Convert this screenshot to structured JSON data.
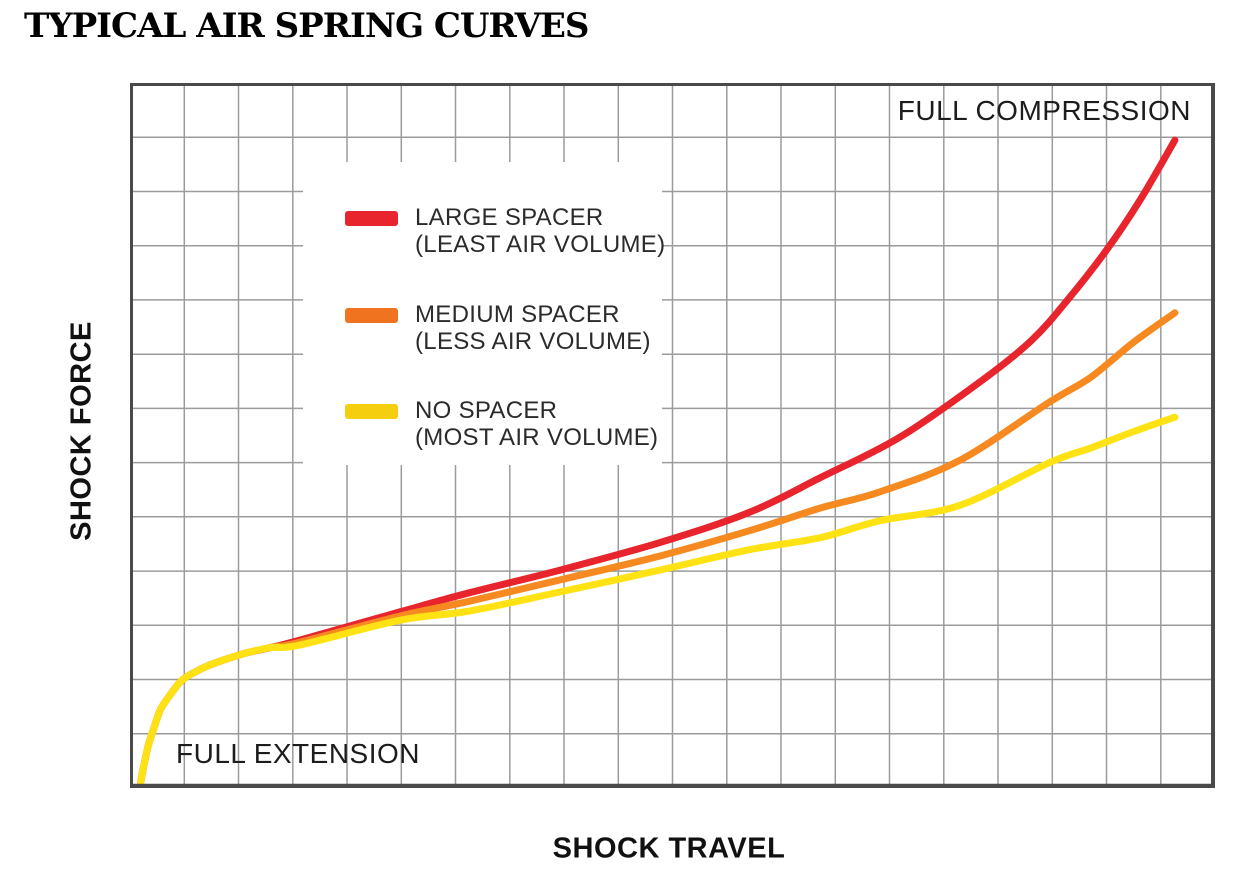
{
  "title": "TYPICAL AIR SPRING CURVES",
  "axes": {
    "y_label": "SHOCK FORCE",
    "x_label": "SHOCK TRAVEL"
  },
  "annotations": {
    "top_right": "FULL COMPRESSION",
    "bottom_left": "FULL EXTENSION"
  },
  "legend": {
    "items": [
      {
        "label": "LARGE SPACER",
        "sublabel": "(LEAST AIR VOLUME)",
        "color": "#E8242D"
      },
      {
        "label": "MEDIUM SPACER",
        "sublabel": "(LESS AIR VOLUME)",
        "color": "#F07320"
      },
      {
        "label": "NO SPACER",
        "sublabel": "(MOST AIR VOLUME)",
        "color": "#F6CE10"
      }
    ]
  },
  "chart_data": {
    "type": "line",
    "title": "TYPICAL AIR SPRING CURVES",
    "xlabel": "SHOCK TRAVEL",
    "ylabel": "SHOCK FORCE",
    "axis_numeric": false,
    "x_extremes_labels": [
      "FULL EXTENSION",
      "FULL COMPRESSION"
    ],
    "xlim": [
      0,
      100
    ],
    "ylim": [
      0,
      100
    ],
    "units": "percent of plot area (no numeric scale shown)",
    "grid": {
      "on": true,
      "columns": 20,
      "rows": 13,
      "line_color": "#9B9B9B",
      "border_color": "#4A4A4A"
    },
    "legend_position": "upper-left-inside",
    "line_width": 7,
    "series": [
      {
        "name": "LARGE SPACER (LEAST AIR VOLUME)",
        "color": "#E8242D",
        "points": [
          [
            0.9,
            0
          ],
          [
            1.2,
            2.6
          ],
          [
            1.7,
            6.1
          ],
          [
            2.2,
            8.5
          ],
          [
            2.8,
            11.1
          ],
          [
            3.7,
            13.2
          ],
          [
            4.8,
            15.3
          ],
          [
            6.3,
            16.7
          ],
          [
            7.8,
            17.7
          ],
          [
            10.6,
            19.1
          ],
          [
            12.9,
            19.9
          ],
          [
            15.7,
            21.0
          ],
          [
            24.9,
            25.0
          ],
          [
            31.3,
            27.7
          ],
          [
            39.6,
            30.9
          ],
          [
            48.8,
            34.8
          ],
          [
            57.1,
            39.1
          ],
          [
            63.6,
            44.0
          ],
          [
            71.0,
            49.8
          ],
          [
            78.6,
            57.9
          ],
          [
            83.1,
            63.5
          ],
          [
            86.4,
            69.2
          ],
          [
            90.0,
            76.3
          ],
          [
            93.1,
            83.4
          ],
          [
            96.3,
            91.9
          ]
        ]
      },
      {
        "name": "MEDIUM SPACER (LESS AIR VOLUME)",
        "color": "#F6891F",
        "points": [
          [
            0.9,
            0
          ],
          [
            1.2,
            2.6
          ],
          [
            1.7,
            6.1
          ],
          [
            2.2,
            8.5
          ],
          [
            2.8,
            11.1
          ],
          [
            3.7,
            13.2
          ],
          [
            4.8,
            15.3
          ],
          [
            6.3,
            16.7
          ],
          [
            7.8,
            17.7
          ],
          [
            10.6,
            19.1
          ],
          [
            12.9,
            19.9
          ],
          [
            15.7,
            20.7
          ],
          [
            24.9,
            24.4
          ],
          [
            31.3,
            26.5
          ],
          [
            39.6,
            29.5
          ],
          [
            48.8,
            32.9
          ],
          [
            57.1,
            36.5
          ],
          [
            63.6,
            39.7
          ],
          [
            69.1,
            42.0
          ],
          [
            76.5,
            46.5
          ],
          [
            84.8,
            54.8
          ],
          [
            88.5,
            58.2
          ],
          [
            92.4,
            63.1
          ],
          [
            96.3,
            67.4
          ]
        ]
      },
      {
        "name": "NO SPACER (MOST AIR VOLUME)",
        "color": "#FFE214",
        "points": [
          [
            0.9,
            0
          ],
          [
            1.2,
            2.6
          ],
          [
            1.7,
            6.1
          ],
          [
            2.2,
            8.5
          ],
          [
            2.8,
            11.1
          ],
          [
            3.7,
            13.2
          ],
          [
            4.8,
            15.3
          ],
          [
            6.3,
            16.7
          ],
          [
            7.8,
            17.7
          ],
          [
            10.6,
            19.1
          ],
          [
            12.9,
            19.9
          ],
          [
            15.7,
            20.3
          ],
          [
            24.9,
            23.8
          ],
          [
            31.3,
            25.1
          ],
          [
            39.6,
            27.8
          ],
          [
            48.8,
            30.9
          ],
          [
            57.1,
            33.8
          ],
          [
            63.6,
            35.5
          ],
          [
            69.1,
            37.9
          ],
          [
            76.5,
            40.1
          ],
          [
            84.8,
            46.2
          ],
          [
            88.5,
            48.2
          ],
          [
            92.4,
            50.5
          ],
          [
            96.3,
            52.6
          ]
        ]
      }
    ]
  }
}
